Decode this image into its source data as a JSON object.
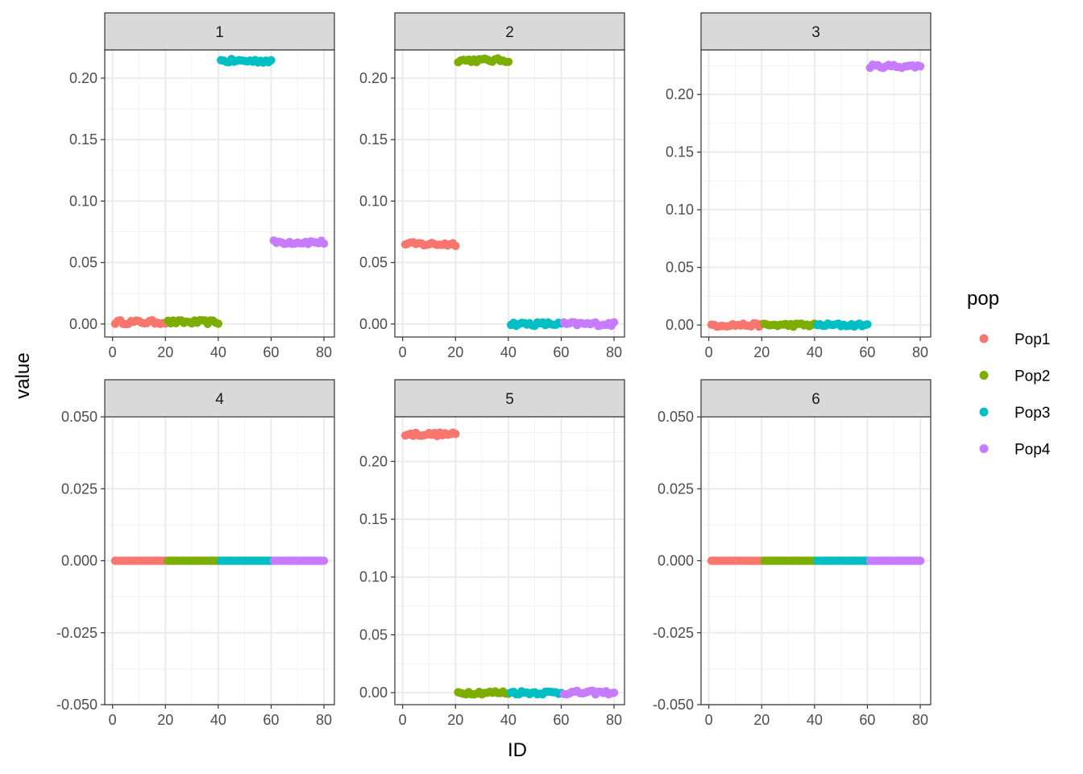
{
  "chart_data": {
    "type": "scatter",
    "xlabel": "ID",
    "ylabel": "value",
    "legend_title": "pop",
    "legend_position": "right",
    "grid": true,
    "series_defs": [
      {
        "name": "Pop1",
        "color": "#F8766D",
        "id_range": [
          1,
          20
        ]
      },
      {
        "name": "Pop2",
        "color": "#7CAE00",
        "id_range": [
          21,
          40
        ]
      },
      {
        "name": "Pop3",
        "color": "#00BFC4",
        "id_range": [
          41,
          60
        ]
      },
      {
        "name": "Pop4",
        "color": "#C77CFF",
        "id_range": [
          61,
          80
        ]
      }
    ],
    "x_ticks": [
      {
        "value": 0,
        "label": "0"
      },
      {
        "value": 20,
        "label": "20"
      },
      {
        "value": 40,
        "label": "40"
      },
      {
        "value": 60,
        "label": "60"
      },
      {
        "value": 80,
        "label": "80"
      }
    ],
    "xlim": [
      -2.95,
      83.95
    ],
    "panels": [
      {
        "label": "1",
        "ylim": [
          -0.0106,
          0.2229
        ],
        "y_ticks": [
          {
            "value": 0,
            "label": "0.00"
          },
          {
            "value": 0.05,
            "label": "0.05"
          },
          {
            "value": 0.1,
            "label": "0.10"
          },
          {
            "value": 0.15,
            "label": "0.15"
          },
          {
            "value": 0.2,
            "label": "0.20"
          }
        ],
        "y_minor": [
          0.025,
          0.075,
          0.125,
          0.175
        ],
        "means": {
          "Pop1": 0.0015,
          "Pop2": 0.0015,
          "Pop3": 0.214,
          "Pop4": 0.0665
        },
        "jitter": 0.0016
      },
      {
        "label": "2",
        "ylim": [
          -0.0106,
          0.2229
        ],
        "y_ticks": [
          {
            "value": 0,
            "label": "0.00"
          },
          {
            "value": 0.05,
            "label": "0.05"
          },
          {
            "value": 0.1,
            "label": "0.10"
          },
          {
            "value": 0.15,
            "label": "0.15"
          },
          {
            "value": 0.2,
            "label": "0.20"
          }
        ],
        "y_minor": [
          0.025,
          0.075,
          0.125,
          0.175
        ],
        "means": {
          "Pop1": 0.065,
          "Pop2": 0.2145,
          "Pop3": 0.0,
          "Pop4": 0.0
        },
        "jitter": 0.0016
      },
      {
        "label": "3",
        "ylim": [
          -0.0104,
          0.2386
        ],
        "y_ticks": [
          {
            "value": 0,
            "label": "0.00"
          },
          {
            "value": 0.05,
            "label": "0.05"
          },
          {
            "value": 0.1,
            "label": "0.10"
          },
          {
            "value": 0.15,
            "label": "0.15"
          },
          {
            "value": 0.2,
            "label": "0.20"
          }
        ],
        "y_minor": [
          0.025,
          0.075,
          0.125,
          0.175,
          0.225
        ],
        "means": {
          "Pop1": 0.0,
          "Pop2": 0.0,
          "Pop3": 0.0,
          "Pop4": 0.2245
        },
        "jitter": 0.0015
      },
      {
        "label": "4",
        "ylim": [
          -0.05,
          0.05
        ],
        "y_ticks": [
          {
            "value": -0.05,
            "label": "-0.050"
          },
          {
            "value": -0.025,
            "label": "-0.025"
          },
          {
            "value": 0,
            "label": "0.000"
          },
          {
            "value": 0.025,
            "label": "0.025"
          },
          {
            "value": 0.05,
            "label": "0.050"
          }
        ],
        "y_minor": [
          -0.0375,
          -0.0125,
          0.0125,
          0.0375
        ],
        "means": {
          "Pop1": 0.0,
          "Pop2": 0.0,
          "Pop3": 0.0,
          "Pop4": 0.0
        },
        "jitter": 0
      },
      {
        "label": "5",
        "ylim": [
          -0.0104,
          0.2386
        ],
        "y_ticks": [
          {
            "value": 0,
            "label": "0.00"
          },
          {
            "value": 0.05,
            "label": "0.05"
          },
          {
            "value": 0.1,
            "label": "0.10"
          },
          {
            "value": 0.15,
            "label": "0.15"
          },
          {
            "value": 0.2,
            "label": "0.20"
          }
        ],
        "y_minor": [
          0.025,
          0.075,
          0.125,
          0.175,
          0.225
        ],
        "means": {
          "Pop1": 0.2235,
          "Pop2": 0.0,
          "Pop3": 0.0,
          "Pop4": 0.0
        },
        "jitter": 0.0016
      },
      {
        "label": "6",
        "ylim": [
          -0.05,
          0.05
        ],
        "y_ticks": [
          {
            "value": -0.05,
            "label": "-0.050"
          },
          {
            "value": -0.025,
            "label": "-0.025"
          },
          {
            "value": 0,
            "label": "0.000"
          },
          {
            "value": 0.025,
            "label": "0.025"
          },
          {
            "value": 0.05,
            "label": "0.050"
          }
        ],
        "y_minor": [
          -0.0375,
          -0.0125,
          0.0125,
          0.0375
        ],
        "means": {
          "Pop1": 0.0,
          "Pop2": 0.0,
          "Pop3": 0.0,
          "Pop4": 0.0
        },
        "jitter": 0
      }
    ]
  }
}
